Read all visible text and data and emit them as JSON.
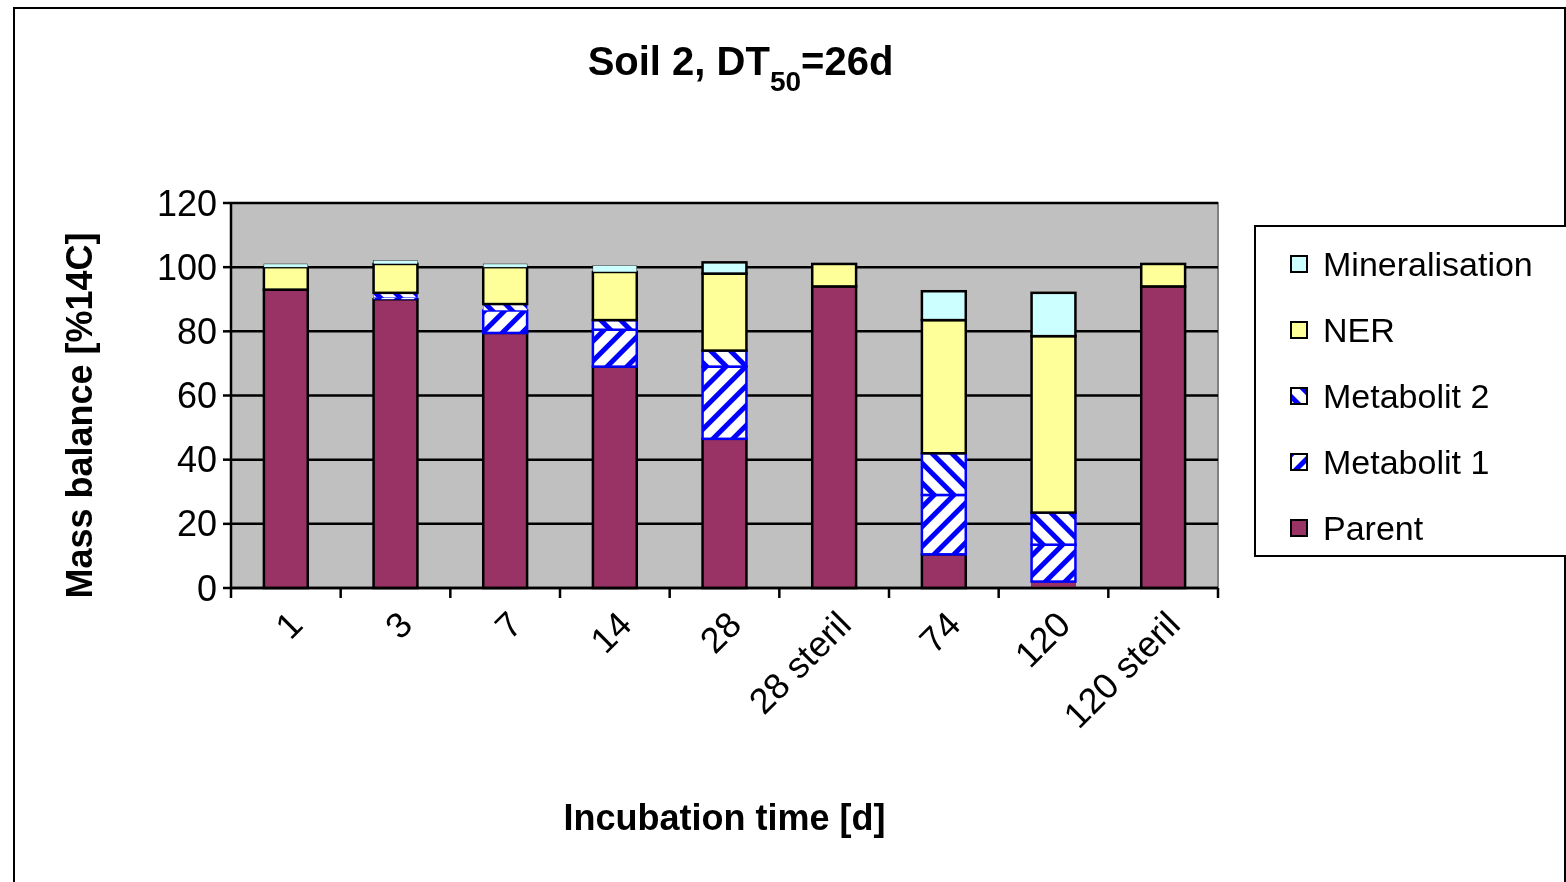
{
  "chart_data": {
    "type": "bar",
    "stacked": true,
    "title": "Soil 2, DT$_{50}$=26d",
    "xlabel": "Incubation time [d]",
    "ylabel": "Mass balance [%14C]",
    "categories": [
      "1",
      "3",
      "7",
      "14",
      "28",
      "28 steril",
      "74",
      "120",
      "120 steril"
    ],
    "series": [
      {
        "name": "Parent",
        "color": "#993366",
        "values": [
          93,
          90,
          79.5,
          69,
          46.5,
          94,
          10.5,
          2,
          94
        ]
      },
      {
        "name": "Metabolit 1",
        "color": "#0000ff",
        "values": [
          0,
          0.5,
          7,
          11.5,
          22.5,
          0,
          18.5,
          11.5,
          0
        ]
      },
      {
        "name": "Metabolit 2",
        "color": "#0000ff",
        "values": [
          0,
          1.5,
          2,
          3,
          5,
          0,
          13,
          10,
          0
        ]
      },
      {
        "name": "NER",
        "color": "#ffff99",
        "values": [
          7,
          9,
          11.5,
          15,
          24,
          7,
          41.5,
          55,
          7
        ]
      },
      {
        "name": "Mineralisation",
        "color": "#ccffff",
        "values": [
          1,
          1,
          1,
          2,
          3.5,
          0,
          9,
          13.5,
          0
        ]
      }
    ],
    "ylim": [
      0,
      120
    ],
    "yticks": [
      0,
      20,
      40,
      60,
      80,
      100,
      120
    ],
    "grid": "y",
    "legend": "right"
  }
}
